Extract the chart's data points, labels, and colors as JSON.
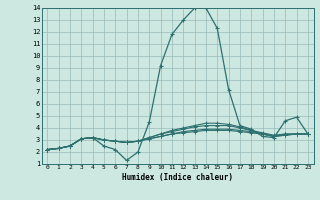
{
  "xlabel": "Humidex (Indice chaleur)",
  "bg_color": "#cce8e0",
  "grid_color": "#99bbbb",
  "line_color": "#2d7070",
  "xlim": [
    -0.5,
    23.5
  ],
  "ylim": [
    1,
    14
  ],
  "xticks": [
    0,
    1,
    2,
    3,
    4,
    5,
    6,
    7,
    8,
    9,
    10,
    11,
    12,
    13,
    14,
    15,
    16,
    17,
    18,
    19,
    20,
    21,
    22,
    23
  ],
  "yticks": [
    1,
    2,
    3,
    4,
    5,
    6,
    7,
    8,
    9,
    10,
    11,
    12,
    13,
    14
  ],
  "lines": [
    [
      2.2,
      2.3,
      2.5,
      3.1,
      3.2,
      2.5,
      2.2,
      1.3,
      2.0,
      4.5,
      9.2,
      11.8,
      13.0,
      14.0,
      14.0,
      12.3,
      7.2,
      4.2,
      3.9,
      3.3,
      3.2,
      4.6,
      4.9,
      3.5
    ],
    [
      2.2,
      2.3,
      2.5,
      3.1,
      3.2,
      3.0,
      2.9,
      2.8,
      2.9,
      3.1,
      3.3,
      3.5,
      3.6,
      3.7,
      3.8,
      3.8,
      3.8,
      3.7,
      3.6,
      3.5,
      3.3,
      3.4,
      3.5,
      3.5
    ],
    [
      2.2,
      2.3,
      2.5,
      3.1,
      3.2,
      3.0,
      2.9,
      2.8,
      2.9,
      3.1,
      3.3,
      3.5,
      3.7,
      3.8,
      3.9,
      3.9,
      3.9,
      3.8,
      3.7,
      3.5,
      3.3,
      3.4,
      3.5,
      3.5
    ],
    [
      2.2,
      2.3,
      2.5,
      3.1,
      3.2,
      3.0,
      2.9,
      2.8,
      2.9,
      3.2,
      3.5,
      3.7,
      3.9,
      4.1,
      4.2,
      4.2,
      4.2,
      4.0,
      3.8,
      3.6,
      3.4,
      3.5,
      3.5,
      3.5
    ],
    [
      2.2,
      2.3,
      2.5,
      3.1,
      3.2,
      3.0,
      2.9,
      2.8,
      2.9,
      3.2,
      3.5,
      3.8,
      4.0,
      4.2,
      4.4,
      4.4,
      4.3,
      4.1,
      3.8,
      3.5,
      3.3,
      3.5,
      3.5,
      3.5
    ]
  ]
}
